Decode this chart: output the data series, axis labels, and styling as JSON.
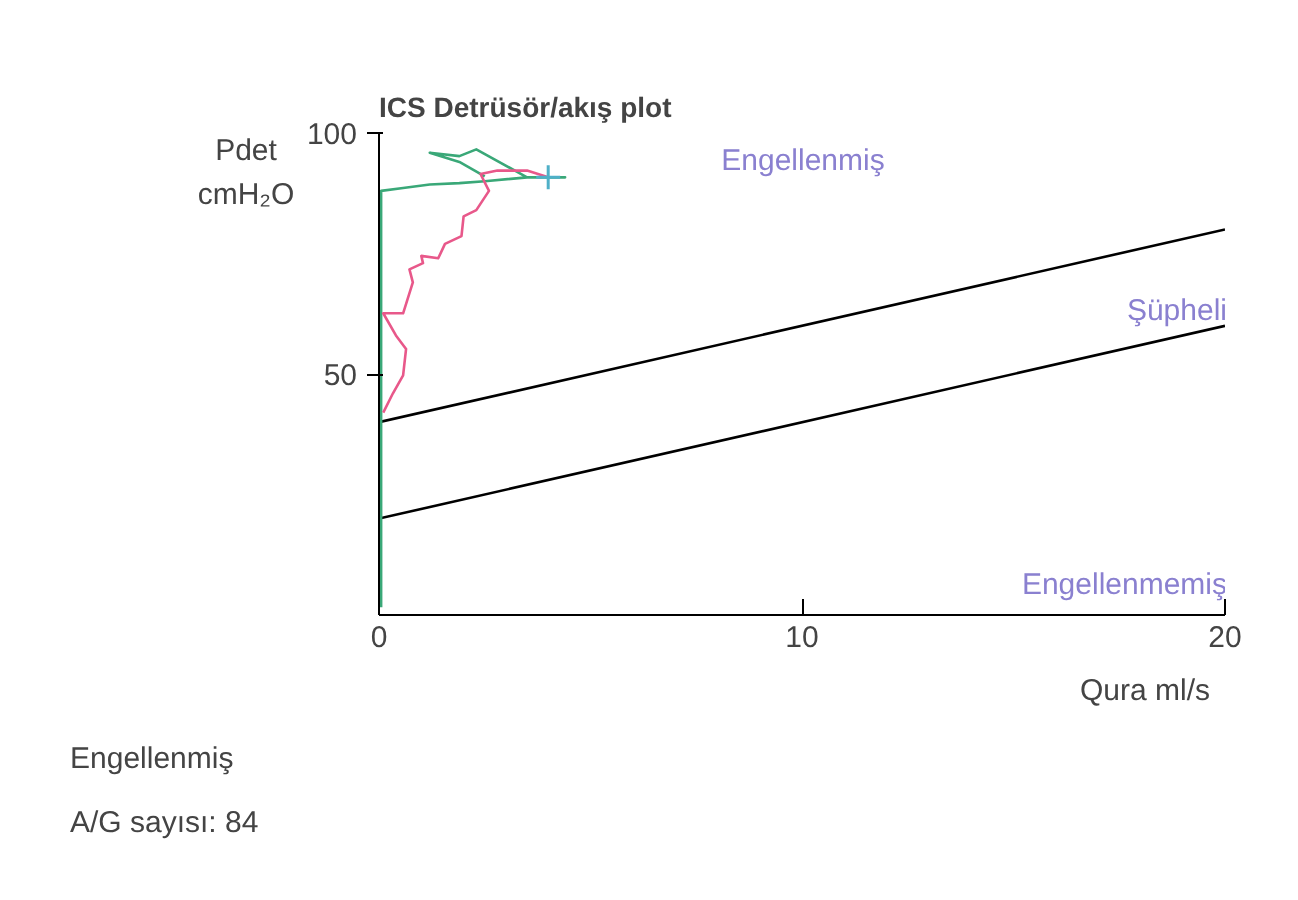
{
  "chart_data": {
    "type": "line",
    "title": "ICS Detrüsör/akış plot",
    "xlabel": "Qura ml/s",
    "ylabel": "Pdet cmH₂O",
    "xlim": [
      0,
      20
    ],
    "ylim": [
      0,
      100
    ],
    "xticks": [
      0,
      10,
      20
    ],
    "yticks": [
      50,
      100
    ],
    "grid": false,
    "series": [
      {
        "color": "#000000",
        "x": [
          0,
          20
        ],
        "values": [
          40,
          80
        ]
      },
      {
        "color": "#000000",
        "x": [
          0,
          20
        ],
        "values": [
          20,
          60
        ]
      },
      {
        "color": "#3aa878",
        "x": [
          0.05,
          0.05,
          0.05,
          0.57,
          1.2,
          1.9,
          2.5,
          3.5,
          4.4,
          3.5,
          2.3,
          1.9,
          1.2,
          1.9,
          2.5
        ],
        "values": [
          1.6,
          40,
          88,
          88.6,
          89.3,
          89.6,
          90,
          90.8,
          90.8,
          90.8,
          96.6,
          95.2,
          95.9,
          94,
          91
        ]
      },
      {
        "color": "#e8588a",
        "x": [
          0.1,
          0.33,
          0.57,
          0.64,
          0.4,
          0.1,
          0.57,
          0.8,
          0.72,
          1.04,
          1.0,
          1.4,
          1.56,
          1.95,
          2.0,
          2.3,
          2.6,
          2.4,
          2.8,
          3.5,
          4.0
        ],
        "values": [
          42,
          46,
          49.7,
          55.2,
          58,
          62.6,
          62.6,
          69,
          71.7,
          73,
          74.5,
          74,
          77,
          78.6,
          82.7,
          84,
          88,
          91.5,
          92.2,
          92.2,
          90.8
        ]
      },
      {
        "type": "scatter",
        "marker": "cross",
        "color": "#4fb0c8",
        "x": [
          4.0
        ],
        "values": [
          90.8
        ]
      }
    ],
    "annotations": [
      "Engellenmiş",
      "Şüpheli",
      "Engellenmemiş",
      "Engellenmiş",
      "A/G sayısı: 84"
    ]
  }
}
